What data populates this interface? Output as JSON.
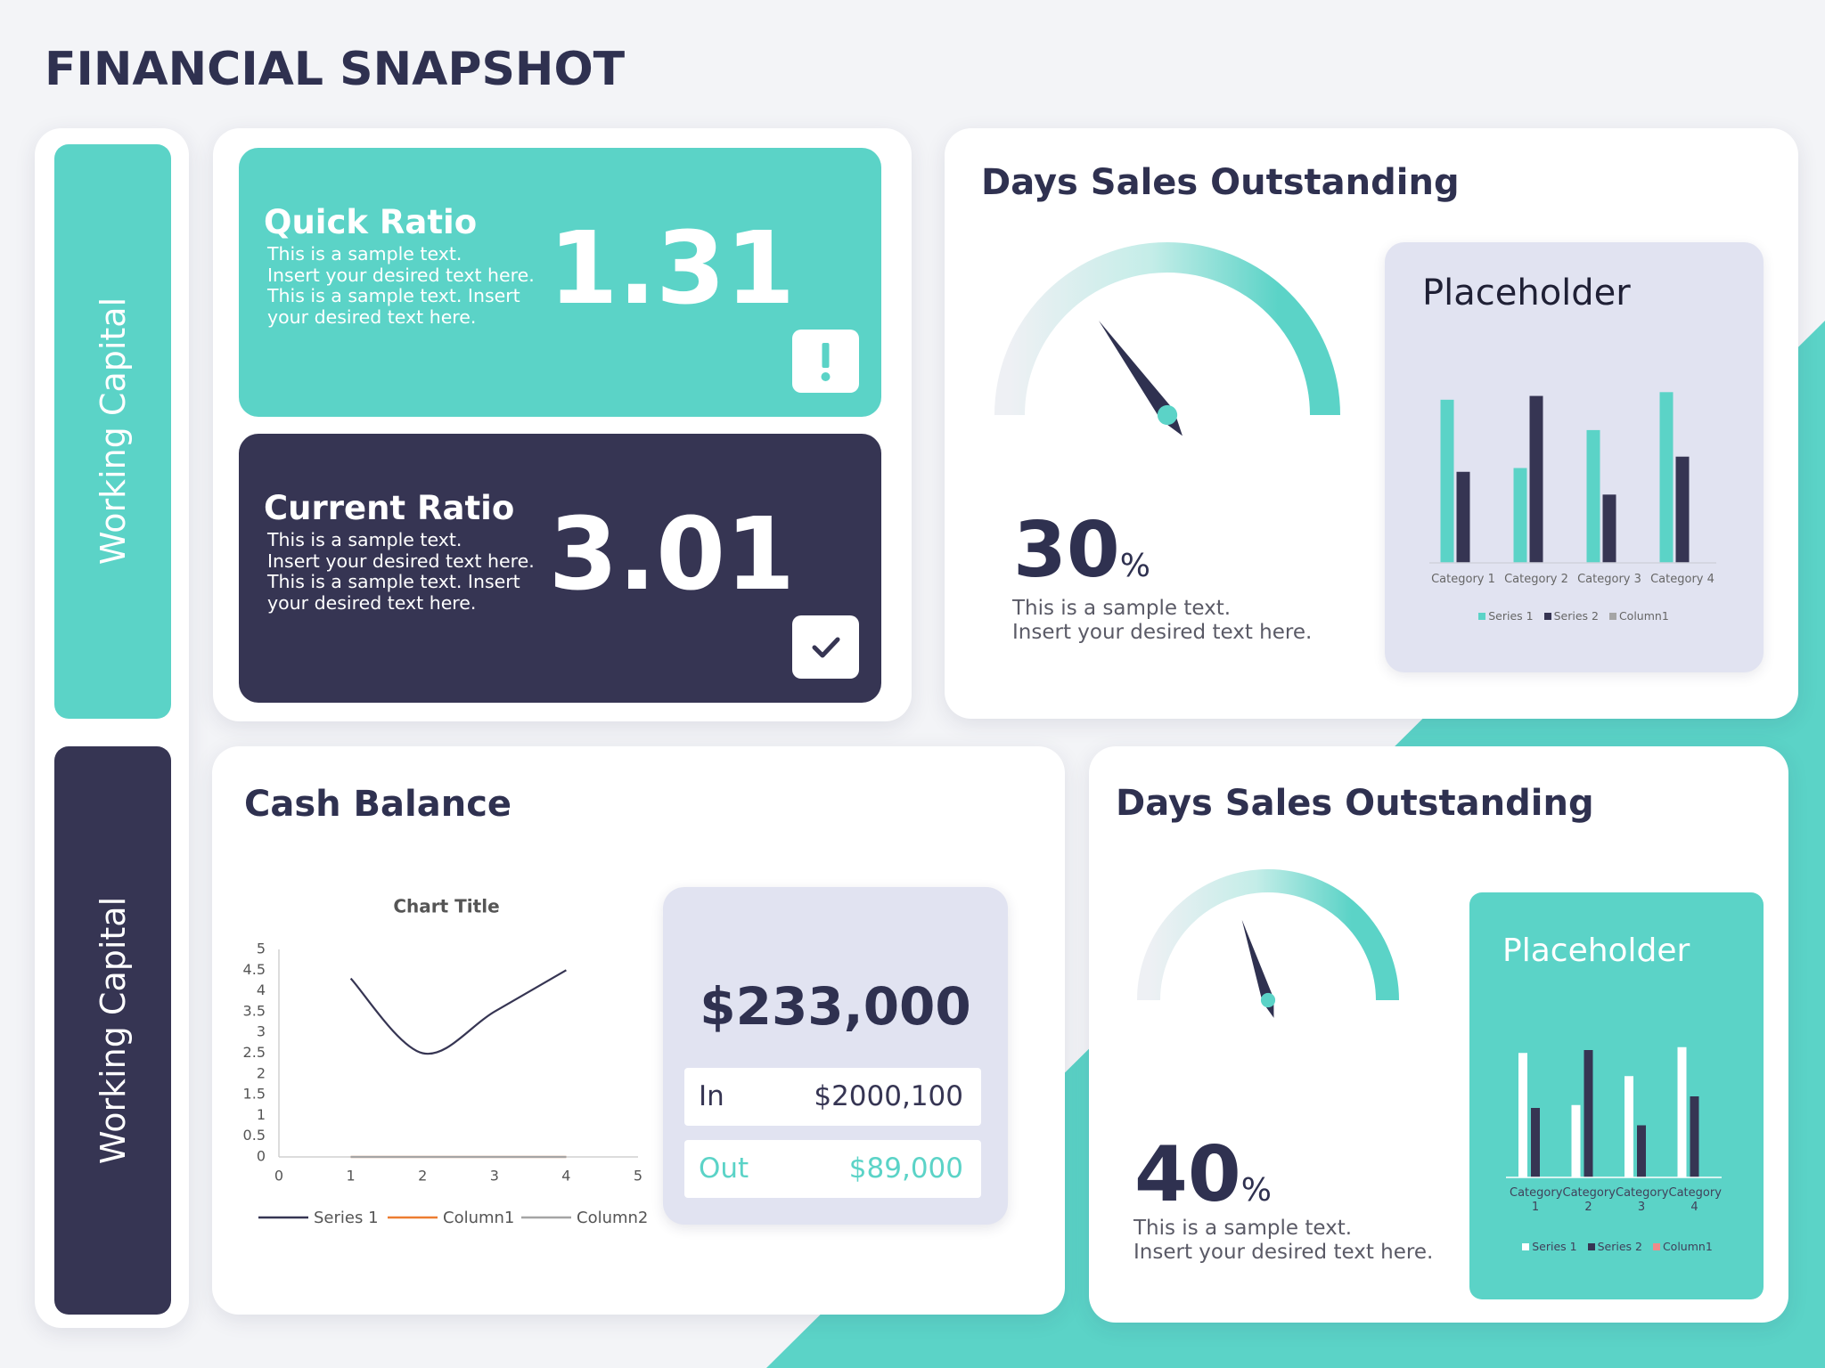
{
  "title": "FINANCIAL SNAPSHOT",
  "side_labels": [
    "Working Capital",
    "Working Capital"
  ],
  "ratios": [
    {
      "name": "Quick Ratio",
      "lines": [
        "This is a sample text.",
        "Insert your desired text here.",
        "This is a sample text. Insert",
        "your desired text here."
      ],
      "value": 1.31
    },
    {
      "name": "Current Ratio",
      "lines": [
        "This is a sample text.",
        "Insert your desired text here.",
        "This is a sample text. Insert",
        "your desired text here."
      ],
      "value": 3.01
    }
  ],
  "dso_panels": [
    {
      "title": "Days Sales Outstanding",
      "value": 30,
      "unit": "%",
      "lines": [
        "This is a sample text.",
        "Insert your desired text here."
      ]
    },
    {
      "title": "Days Sales Outstanding",
      "value": 40,
      "unit": "%",
      "lines": [
        "This is a sample text.",
        "Insert your desired text here."
      ]
    }
  ],
  "cash_balance": {
    "title": "Cash Balance",
    "total": "$233,000",
    "rows": [
      {
        "label": "In",
        "value": "$2000,100"
      },
      {
        "label": "Out",
        "value": "$89,000"
      }
    ]
  },
  "chart_data": [
    {
      "type": "line",
      "title": "Chart Title",
      "x": [
        1,
        2,
        3,
        4
      ],
      "series": [
        {
          "name": "Series 1",
          "color": "#363553",
          "values": [
            4.3,
            2.5,
            3.5,
            4.5
          ]
        },
        {
          "name": "Column1",
          "color": "#ed7d31",
          "values": [
            0,
            0,
            0,
            0
          ]
        },
        {
          "name": "Column2",
          "color": "#a5a5a5",
          "values": [
            0,
            0,
            0,
            0
          ]
        }
      ],
      "xlim": [
        0,
        5
      ],
      "xticks": [
        0,
        1,
        2,
        3,
        4,
        5
      ],
      "ylim": [
        0,
        5
      ],
      "yticks": [
        0,
        0.5,
        1,
        1.5,
        2,
        2.5,
        3,
        3.5,
        4,
        4.5,
        5
      ]
    },
    {
      "type": "bar",
      "title": "Placeholder",
      "categories": [
        "Category 1",
        "Category 2",
        "Category 3",
        "Category 4"
      ],
      "series": [
        {
          "name": "Series 1",
          "color": "#5bd3c7",
          "values": [
            4.3,
            2.5,
            3.5,
            4.5
          ]
        },
        {
          "name": "Series 2",
          "color": "#363553",
          "values": [
            2.4,
            4.4,
            1.8,
            2.8
          ]
        },
        {
          "name": "Column1",
          "color": "#a5a5a5",
          "values": [
            null,
            null,
            null,
            null
          ]
        }
      ]
    },
    {
      "type": "bar",
      "title": "Placeholder",
      "categories": [
        "Category 1",
        "Category 2",
        "Category 3",
        "Category 4"
      ],
      "series": [
        {
          "name": "Series 1",
          "color": "#ffffff",
          "values": [
            4.3,
            2.5,
            3.5,
            4.5
          ]
        },
        {
          "name": "Series 2",
          "color": "#363553",
          "values": [
            2.4,
            4.4,
            1.8,
            2.8
          ]
        },
        {
          "name": "Column1",
          "color": "#f08a8a",
          "values": [
            null,
            null,
            null,
            null
          ]
        }
      ]
    }
  ]
}
